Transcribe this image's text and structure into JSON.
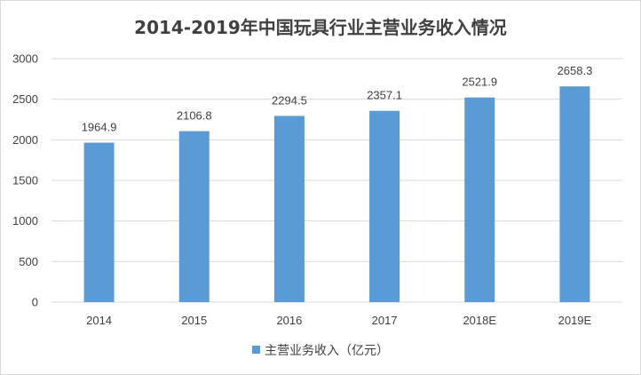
{
  "chart_data": {
    "type": "bar",
    "title": "2014-2019年中国玩具行业主营业务收入情况",
    "categories": [
      "2014",
      "2015",
      "2016",
      "2017",
      "2018E",
      "2019E"
    ],
    "series": [
      {
        "name": "主营业务收入（亿元）",
        "values": [
          1964.9,
          2106.8,
          2294.5,
          2357.1,
          2521.9,
          2658.3
        ],
        "labels": [
          "1964.9",
          "2106.8",
          "2294.5",
          "2357.1",
          "2521.9",
          "2658.3"
        ]
      }
    ],
    "xlabel": "",
    "ylabel": "",
    "ylim": [
      0,
      3000
    ],
    "yticks": [
      "0",
      "500",
      "1000",
      "1500",
      "2000",
      "2500",
      "3000"
    ],
    "grid": true,
    "legend_position": "bottom"
  },
  "colors": {
    "bar": "#5b9bd5",
    "grid": "#d9d9d9",
    "text": "#404040"
  }
}
